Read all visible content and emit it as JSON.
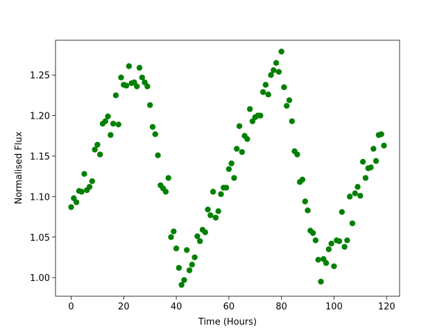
{
  "chart_data": {
    "type": "scatter",
    "xlabel": "Time (Hours)",
    "ylabel": "Normalised Flux",
    "color": "#008000",
    "x": [
      0,
      1,
      2,
      3,
      4,
      5,
      6,
      7,
      8,
      9,
      10,
      11,
      12,
      13,
      14,
      15,
      16,
      17,
      18,
      19,
      20,
      21,
      22,
      23,
      24,
      25,
      26,
      27,
      28,
      29,
      30,
      31,
      32,
      33,
      34,
      35,
      36,
      37,
      38,
      39,
      40,
      41,
      42,
      43,
      44,
      45,
      46,
      47,
      48,
      49,
      50,
      51,
      52,
      53,
      54,
      55,
      56,
      57,
      58,
      59,
      60,
      61,
      62,
      63,
      64,
      65,
      66,
      67,
      68,
      69,
      70,
      71,
      72,
      73,
      74,
      75,
      76,
      77,
      78,
      79,
      80,
      81,
      82,
      83,
      84,
      85,
      86,
      87,
      88,
      89,
      90,
      91,
      92,
      93,
      94,
      95,
      96,
      97,
      98,
      99,
      100,
      101,
      102,
      103,
      104,
      105,
      106,
      107,
      108,
      109,
      110,
      111,
      112,
      113,
      114,
      115,
      116,
      117,
      118,
      119
    ],
    "values": [
      1.087,
      1.098,
      1.093,
      1.107,
      1.106,
      1.128,
      1.108,
      1.112,
      1.119,
      1.158,
      1.164,
      1.152,
      1.19,
      1.193,
      1.199,
      1.176,
      1.19,
      1.225,
      1.189,
      1.247,
      1.238,
      1.237,
      1.261,
      1.24,
      1.241,
      1.236,
      1.259,
      1.247,
      1.241,
      1.236,
      1.213,
      1.186,
      1.177,
      1.151,
      1.114,
      1.11,
      1.106,
      1.123,
      1.05,
      1.057,
      1.036,
      1.012,
      0.991,
      0.997,
      1.034,
      1.009,
      1.016,
      1.025,
      1.051,
      1.045,
      1.059,
      1.056,
      1.084,
      1.077,
      1.106,
      1.074,
      1.082,
      1.103,
      1.111,
      1.111,
      1.134,
      1.141,
      1.123,
      1.159,
      1.187,
      1.155,
      1.175,
      1.171,
      1.208,
      1.193,
      1.198,
      1.2,
      1.2,
      1.229,
      1.238,
      1.226,
      1.25,
      1.256,
      1.265,
      1.254,
      1.279,
      1.235,
      1.212,
      1.219,
      1.193,
      1.156,
      1.152,
      1.118,
      1.121,
      1.094,
      1.083,
      1.058,
      1.055,
      1.046,
      1.022,
      0.995,
      1.023,
      1.018,
      1.035,
      1.042,
      1.014,
      1.046,
      1.045,
      1.081,
      1.038,
      1.046,
      1.1,
      1.067,
      1.104,
      1.112,
      1.101,
      1.143,
      1.123,
      1.135,
      1.136,
      1.159,
      1.144,
      1.176,
      1.177,
      1.163
    ],
    "xlim": [
      -5.95,
      124.95
    ],
    "ylim": [
      0.977,
      1.293
    ],
    "xticks": [
      0,
      20,
      40,
      60,
      80,
      100,
      120
    ],
    "yticks": [
      {
        "value": 1.0,
        "label": "1.00"
      },
      {
        "value": 1.05,
        "label": "1.05"
      },
      {
        "value": 1.1,
        "label": "1.10"
      },
      {
        "value": 1.15,
        "label": "1.15"
      },
      {
        "value": 1.2,
        "label": "1.20"
      },
      {
        "value": 1.25,
        "label": "1.25"
      }
    ],
    "grid": false
  }
}
